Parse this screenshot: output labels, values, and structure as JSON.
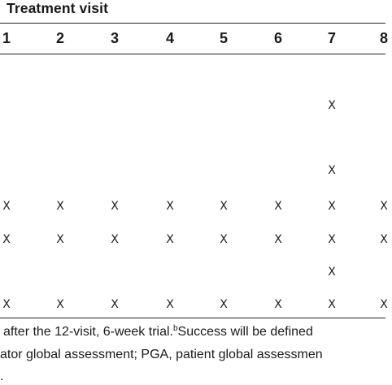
{
  "table": {
    "section_title": "Treatment visit",
    "visits": [
      "1",
      "2",
      "3",
      "4",
      "5",
      "6",
      "7",
      "8"
    ],
    "mark": "X",
    "rows": [
      {
        "marks": [
          false,
          false,
          false,
          false,
          false,
          false,
          true,
          false
        ]
      },
      {
        "marks": [
          false,
          false,
          false,
          false,
          false,
          false,
          true,
          false
        ]
      },
      {
        "marks": [
          true,
          true,
          true,
          true,
          true,
          true,
          true,
          true
        ]
      },
      {
        "marks": [
          true,
          true,
          true,
          true,
          true,
          true,
          true,
          true
        ]
      },
      {
        "marks": [
          false,
          false,
          false,
          false,
          false,
          false,
          true,
          false
        ]
      },
      {
        "marks": [
          true,
          true,
          true,
          true,
          true,
          true,
          true,
          true
        ]
      }
    ]
  },
  "footnotes": {
    "line1_main": "after the 12-visit, 6-week trial.",
    "line1_sup": "b",
    "line1_tail": "Success will be defined",
    "line2": "ator global assessment; PGA, patient global assessmen",
    "line3": "."
  }
}
